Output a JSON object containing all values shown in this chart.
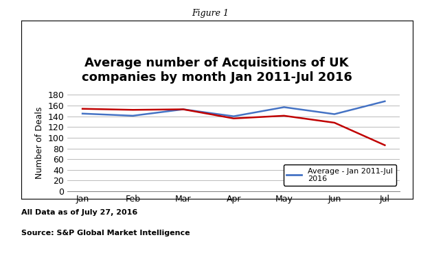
{
  "months": [
    "Jan",
    "Feb",
    "Mar",
    "Apr",
    "May",
    "Jun",
    "Jul"
  ],
  "blue_values": [
    145,
    141,
    153,
    140,
    157,
    144,
    168
  ],
  "red_values": [
    154,
    152,
    153,
    136,
    141,
    128,
    86
  ],
  "title": "Average number of Acquisitions of UK\ncompanies by month Jan 2011-Jul 2016",
  "figure_label": "Figure 1",
  "ylabel": "Number of Deals",
  "ylim": [
    0,
    180
  ],
  "yticks": [
    0,
    20,
    40,
    60,
    80,
    100,
    120,
    140,
    160,
    180
  ],
  "blue_color": "#4472C4",
  "red_color": "#C00000",
  "legend_label": "Average - Jan 2011-Jul\n2016",
  "footnote_line1": "All Data as of July 27, 2016",
  "footnote_line2": "Source: S&P Global Market Intelligence",
  "plot_bg_color": "#ffffff",
  "fig_bg_color": "#ffffff",
  "title_fontsize": 13,
  "axis_label_fontsize": 9,
  "tick_fontsize": 9,
  "legend_fontsize": 8,
  "figure_label_fontsize": 9,
  "footnote_fontsize": 8
}
